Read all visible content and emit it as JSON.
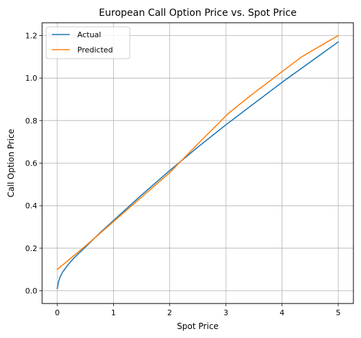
{
  "chart_data": {
    "type": "line",
    "title": "European Call Option Price vs. Spot Price",
    "xlabel": "Spot Price",
    "ylabel": "Call Option Price",
    "xlim": [
      -0.27,
      5.27
    ],
    "ylim": [
      -0.06,
      1.26
    ],
    "xticks": [
      0,
      1,
      2,
      3,
      4,
      5
    ],
    "xtick_labels": [
      "0",
      "1",
      "2",
      "3",
      "4",
      "5"
    ],
    "yticks": [
      0.0,
      0.2,
      0.4,
      0.6,
      0.8,
      1.0,
      1.2
    ],
    "ytick_labels": [
      "0.0",
      "0.2",
      "0.4",
      "0.6",
      "0.8",
      "1.0",
      "1.2"
    ],
    "grid": true,
    "legend_position": "top-left",
    "series": [
      {
        "name": "Actual",
        "color": "#1f77b4",
        "x": [
          0.0,
          0.02,
          0.05,
          0.1,
          0.2,
          0.3,
          0.5,
          0.75,
          1.0,
          1.5,
          2.0,
          2.5,
          3.0,
          3.5,
          4.0,
          4.5,
          5.0
        ],
        "y": [
          0.01,
          0.04,
          0.065,
          0.09,
          0.125,
          0.155,
          0.205,
          0.27,
          0.33,
          0.45,
          0.565,
          0.675,
          0.78,
          0.88,
          0.98,
          1.075,
          1.17
        ]
      },
      {
        "name": "Predicted",
        "color": "#ff7f0e",
        "x": [
          0.0,
          0.5,
          1.0,
          1.5,
          2.0,
          2.5,
          3.05,
          3.5,
          4.0,
          4.35,
          5.0
        ],
        "y": [
          0.1,
          0.21,
          0.325,
          0.44,
          0.555,
          0.69,
          0.835,
          0.93,
          1.03,
          1.1,
          1.2
        ]
      }
    ]
  }
}
